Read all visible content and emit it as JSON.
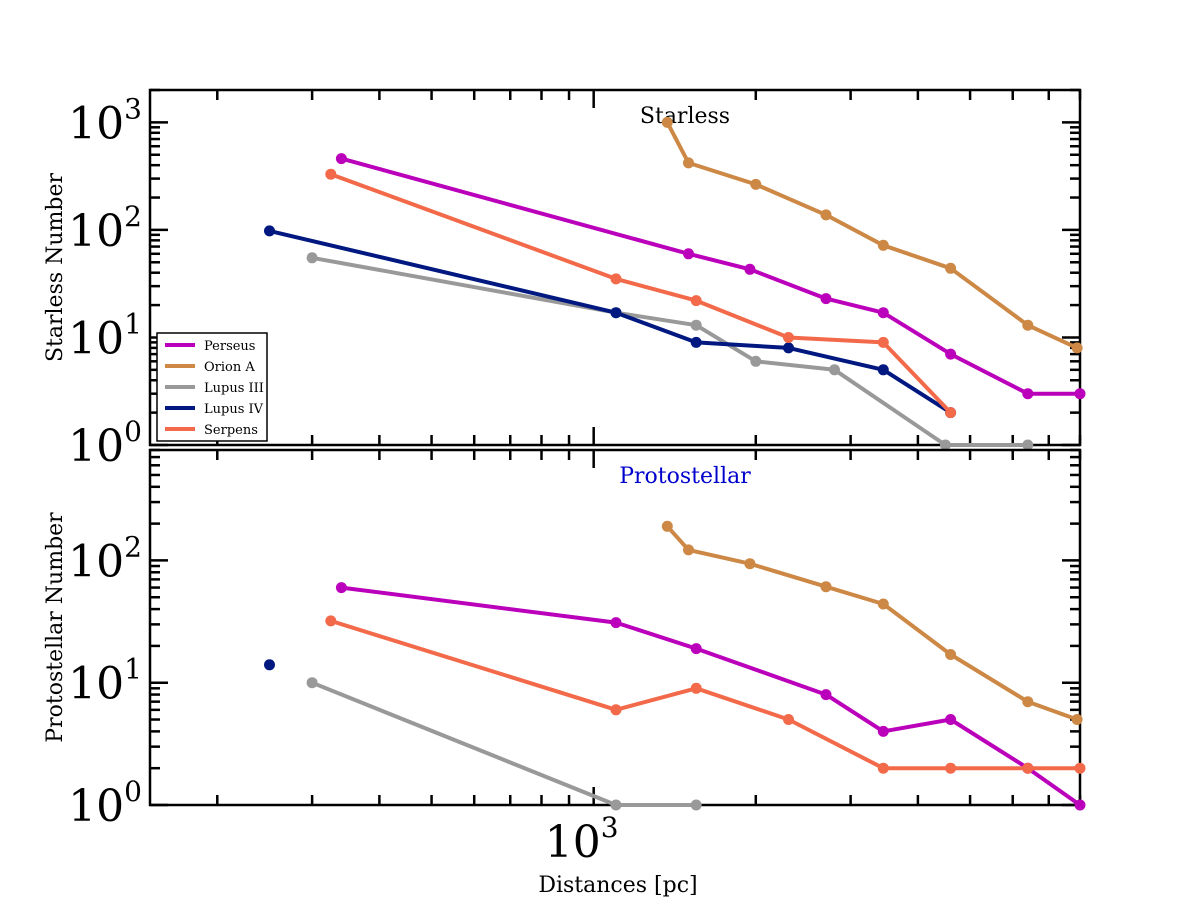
{
  "chart_data": [
    {
      "id": "starless",
      "type": "line",
      "title": "Starless",
      "title_color": "#000000",
      "xlabel": "",
      "ylabel": "Starless Number",
      "xscale": "log",
      "yscale": "log",
      "xlim": [
        150,
        8000
      ],
      "ylim": [
        1,
        2000
      ],
      "yticks": [
        {
          "base": "10",
          "exp": "0",
          "value": 1
        },
        {
          "base": "10",
          "exp": "1",
          "value": 10
        },
        {
          "base": "10",
          "exp": "2",
          "value": 100
        },
        {
          "base": "10",
          "exp": "3",
          "value": 1000
        }
      ],
      "legend_position": "lower-left",
      "series": [
        {
          "name": "Perseus",
          "color": "#bb00bb",
          "points": [
            [
              340,
              460
            ],
            [
              1500,
              60
            ],
            [
              1950,
              43
            ],
            [
              2700,
              23
            ],
            [
              3450,
              17
            ],
            [
              4600,
              7
            ],
            [
              6400,
              3
            ],
            [
              8000,
              3
            ]
          ]
        },
        {
          "name": "Orion A",
          "color": "#cc8844",
          "points": [
            [
              1370,
              1000
            ],
            [
              1500,
              420
            ],
            [
              2000,
              265
            ],
            [
              2700,
              138
            ],
            [
              3450,
              72
            ],
            [
              4600,
              44
            ],
            [
              6400,
              13
            ],
            [
              7900,
              8
            ]
          ]
        },
        {
          "name": "Lupus III",
          "color": "#999999",
          "points": [
            [
              300,
              55
            ],
            [
              1100,
              17
            ],
            [
              1550,
              13
            ],
            [
              2000,
              6
            ],
            [
              2800,
              5
            ],
            [
              4500,
              1
            ],
            [
              6400,
              1
            ]
          ]
        },
        {
          "name": "Lupus IV",
          "color": "#001880",
          "points": [
            [
              250,
              98
            ],
            [
              1100,
              17
            ],
            [
              1550,
              9
            ],
            [
              2300,
              8
            ],
            [
              3450,
              5
            ],
            [
              4600,
              2
            ]
          ]
        },
        {
          "name": "Serpens",
          "color": "#f26a4a",
          "points": [
            [
              325,
              330
            ],
            [
              1100,
              35
            ],
            [
              1550,
              22
            ],
            [
              2300,
              10
            ],
            [
              3450,
              9
            ],
            [
              4600,
              2
            ]
          ]
        }
      ]
    },
    {
      "id": "protostellar",
      "type": "line",
      "title": "Protostellar",
      "title_color": "#0000cc",
      "xlabel": "Distances [pc]",
      "ylabel": "Protostellar Number",
      "xscale": "log",
      "yscale": "log",
      "xlim": [
        150,
        8000
      ],
      "ylim": [
        1,
        800
      ],
      "xticks": [
        {
          "base": "10",
          "exp": "3",
          "value": 1000
        }
      ],
      "yticks": [
        {
          "base": "10",
          "exp": "0",
          "value": 1
        },
        {
          "base": "10",
          "exp": "1",
          "value": 10
        },
        {
          "base": "10",
          "exp": "2",
          "value": 100
        }
      ],
      "series": [
        {
          "name": "Perseus",
          "color": "#bb00bb",
          "points": [
            [
              340,
              60
            ],
            [
              1100,
              31
            ],
            [
              1550,
              19
            ],
            [
              2700,
              8
            ],
            [
              3450,
              4
            ],
            [
              4600,
              5
            ],
            [
              6400,
              2
            ],
            [
              8000,
              1
            ]
          ]
        },
        {
          "name": "Orion A",
          "color": "#cc8844",
          "points": [
            [
              1370,
              190
            ],
            [
              1500,
              122
            ],
            [
              1950,
              94
            ],
            [
              2700,
              61
            ],
            [
              3450,
              44
            ],
            [
              4600,
              17
            ],
            [
              6400,
              7
            ],
            [
              7900,
              5
            ]
          ]
        },
        {
          "name": "Lupus III",
          "color": "#999999",
          "points": [
            [
              300,
              10
            ],
            [
              1100,
              1
            ],
            [
              1550,
              1
            ]
          ]
        },
        {
          "name": "Lupus IV",
          "color": "#001880",
          "points": [
            [
              250,
              14
            ]
          ]
        },
        {
          "name": "Serpens",
          "color": "#f26a4a",
          "points": [
            [
              325,
              32
            ],
            [
              1100,
              6
            ],
            [
              1550,
              9
            ],
            [
              2300,
              5
            ],
            [
              3450,
              2
            ],
            [
              4600,
              2
            ],
            [
              6400,
              2
            ],
            [
              8000,
              2
            ]
          ]
        }
      ]
    }
  ]
}
